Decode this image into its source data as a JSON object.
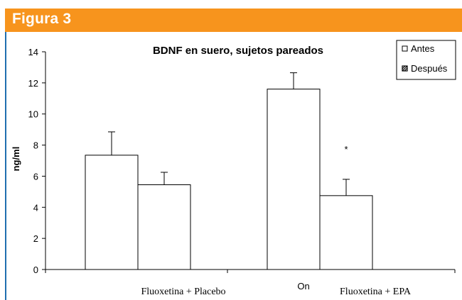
{
  "figure_label": "Figura 3",
  "colors": {
    "banner": "#F7941D",
    "left_rule": "#1F6FB0",
    "bar_fill": "#ffffff",
    "stroke": "#000000"
  },
  "chart_data": {
    "type": "bar",
    "title": "BDNF en suero, sujetos pareados",
    "xlabel": "",
    "ylabel": "ng/ml",
    "ylim": [
      0,
      14
    ],
    "yticks": [
      0,
      2,
      4,
      6,
      8,
      10,
      12,
      14
    ],
    "categories": [
      "Fluoxetina + Placebo",
      "Fluoxetina + EPA"
    ],
    "series": [
      {
        "name": "Antes",
        "values": [
          7.35,
          11.6
        ],
        "error": [
          1.5,
          1.05
        ]
      },
      {
        "name": "Después",
        "values": [
          5.45,
          4.75
        ],
        "error": [
          0.8,
          1.05
        ]
      }
    ],
    "legend_position": "top-right",
    "annotations": [
      {
        "text": "*",
        "category": "Fluoxetina + EPA",
        "series": "Después",
        "y": 7.8
      }
    ],
    "stray_text": "On",
    "grid": false
  }
}
